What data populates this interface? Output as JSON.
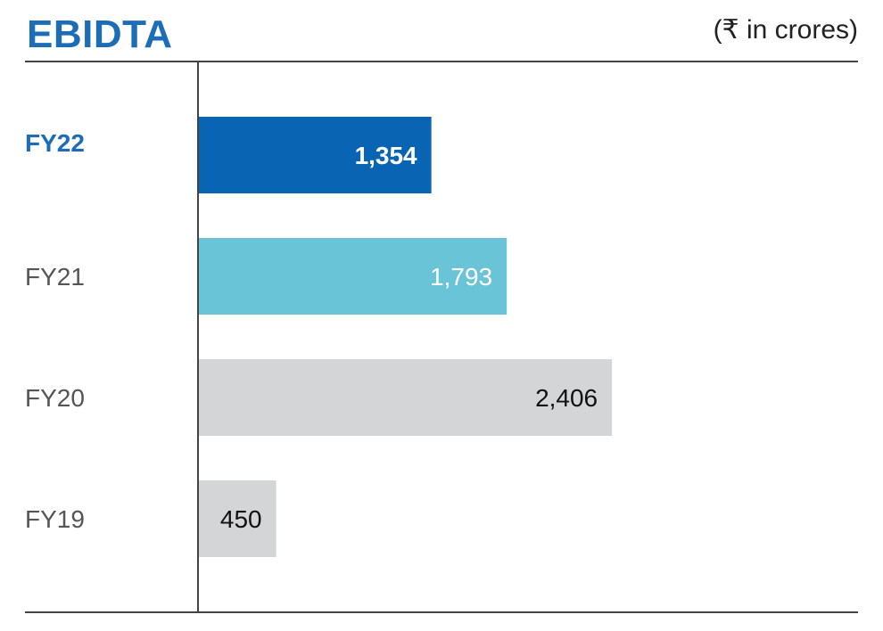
{
  "header": {
    "title": "EBIDTA",
    "unit": "(₹ in crores)"
  },
  "chart_data": {
    "type": "bar",
    "orientation": "horizontal",
    "title": "EBIDTA",
    "unit": "₹ in crores",
    "categories": [
      "FY22",
      "FY21",
      "FY20",
      "FY19"
    ],
    "values": [
      1354,
      1793,
      2406,
      450
    ],
    "value_labels": [
      "1,354",
      "1,793",
      "2,406",
      "450"
    ],
    "colors": [
      "#0a64b4",
      "#6ac4d8",
      "#d4d5d7",
      "#d4d5d7"
    ],
    "label_colors": [
      "#ffffff",
      "#ffffff",
      "#111111",
      "#111111"
    ],
    "category_colors": [
      "#1d6db6",
      "#555555",
      "#555555",
      "#555555"
    ],
    "category_bold": [
      true,
      false,
      false,
      false
    ],
    "xlim": [
      0,
      3000
    ],
    "grid": false
  }
}
